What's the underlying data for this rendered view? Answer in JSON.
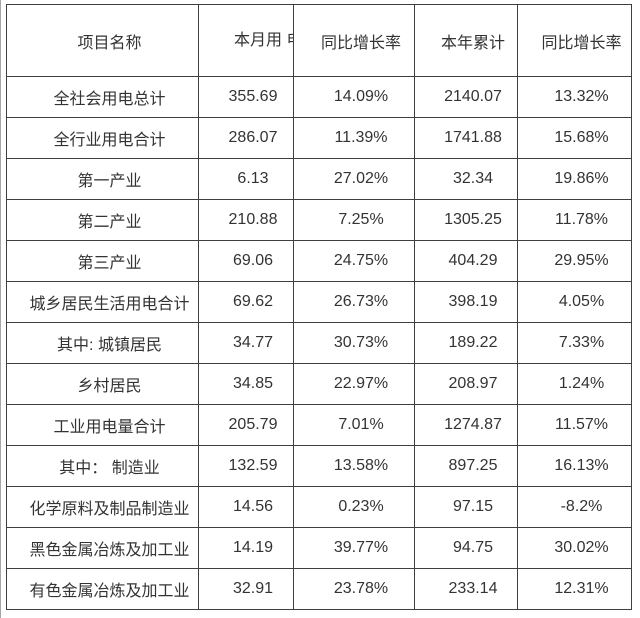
{
  "colors": {
    "background": "#ffffff",
    "table_border": "#3f3f3f",
    "text": "#333333",
    "page_edge_line": "#a6a6a6"
  },
  "table": {
    "headers": [
      "项目名称",
      "本月用\n电",
      "同比增长率",
      "本年累计",
      "同比增长率"
    ],
    "rows": [
      {
        "name": "全社会用电总计",
        "monthly": "355.69",
        "monthly_yoy": "14.09%",
        "ytd": "2140.07",
        "ytd_yoy": "13.32%"
      },
      {
        "name": "全行业用电合计",
        "monthly": "286.07",
        "monthly_yoy": "11.39%",
        "ytd": "1741.88",
        "ytd_yoy": "15.68%"
      },
      {
        "name": "第一产业",
        "monthly": "6.13",
        "monthly_yoy": "27.02%",
        "ytd": "32.34",
        "ytd_yoy": "19.86%"
      },
      {
        "name": "第二产业",
        "monthly": "210.88",
        "monthly_yoy": "7.25%",
        "ytd": "1305.25",
        "ytd_yoy": "11.78%"
      },
      {
        "name": "第三产业",
        "monthly": "69.06",
        "monthly_yoy": "24.75%",
        "ytd": "404.29",
        "ytd_yoy": "29.95%"
      },
      {
        "name": "城乡居民生活用电合计",
        "monthly": "69.62",
        "monthly_yoy": "26.73%",
        "ytd": "398.19",
        "ytd_yoy": "4.05%"
      },
      {
        "name": "其中: 城镇居民",
        "monthly": "34.77",
        "monthly_yoy": "30.73%",
        "ytd": "189.22",
        "ytd_yoy": "7.33%"
      },
      {
        "name": "乡村居民",
        "monthly": "34.85",
        "monthly_yoy": "22.97%",
        "ytd": "208.97",
        "ytd_yoy": "1.24%"
      },
      {
        "name": "工业用电量合计",
        "monthly": "205.79",
        "monthly_yoy": "7.01%",
        "ytd": "1274.87",
        "ytd_yoy": "11.57%"
      },
      {
        "name": "其中： 制造业",
        "monthly": "132.59",
        "monthly_yoy": "13.58%",
        "ytd": "897.25",
        "ytd_yoy": "16.13%"
      },
      {
        "name": "化学原料及制品制造业",
        "monthly": "14.56",
        "monthly_yoy": "0.23%",
        "ytd": "97.15",
        "ytd_yoy": "-8.2%"
      },
      {
        "name": "黑色金属冶炼及加工业",
        "monthly": "14.19",
        "monthly_yoy": "39.77%",
        "ytd": "94.75",
        "ytd_yoy": "30.02%"
      },
      {
        "name": "有色金属冶炼及加工业",
        "monthly": "32.91",
        "monthly_yoy": "23.78%",
        "ytd": "233.14",
        "ytd_yoy": "12.31%"
      }
    ]
  },
  "chart_data": {
    "type": "table",
    "title": "",
    "columns": [
      "项目名称",
      "本月用电",
      "同比增长率",
      "本年累计",
      "同比增长率"
    ],
    "rows": [
      [
        "全社会用电总计",
        355.69,
        "14.09%",
        2140.07,
        "13.32%"
      ],
      [
        "全行业用电合计",
        286.07,
        "11.39%",
        1741.88,
        "15.68%"
      ],
      [
        "第一产业",
        6.13,
        "27.02%",
        32.34,
        "19.86%"
      ],
      [
        "第二产业",
        210.88,
        "7.25%",
        1305.25,
        "11.78%"
      ],
      [
        "第三产业",
        69.06,
        "24.75%",
        404.29,
        "29.95%"
      ],
      [
        "城乡居民生活用电合计",
        69.62,
        "26.73%",
        398.19,
        "4.05%"
      ],
      [
        "其中: 城镇居民",
        34.77,
        "30.73%",
        189.22,
        "7.33%"
      ],
      [
        "乡村居民",
        34.85,
        "22.97%",
        208.97,
        "1.24%"
      ],
      [
        "工业用电量合计",
        205.79,
        "7.01%",
        1274.87,
        "11.57%"
      ],
      [
        "其中: 制造业",
        132.59,
        "13.58%",
        897.25,
        "16.13%"
      ],
      [
        "化学原料及制品制造业",
        14.56,
        "0.23%",
        97.15,
        "-8.2%"
      ],
      [
        "黑色金属冶炼及加工业",
        14.19,
        "39.77%",
        94.75,
        "30.02%"
      ],
      [
        "有色金属冶炼及加工业",
        32.91,
        "23.78%",
        233.14,
        "12.31%"
      ]
    ]
  }
}
